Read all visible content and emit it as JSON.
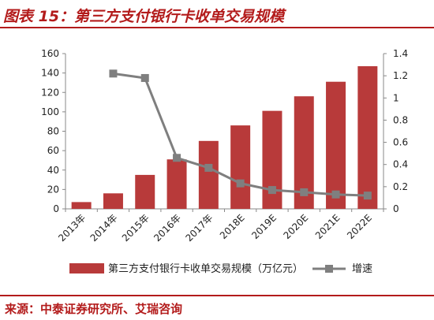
{
  "header": {
    "title": "图表 15：第三方支付银行卡收单交易规模"
  },
  "footer": {
    "source": "来源：中泰证券研究所、艾瑞咨询"
  },
  "colors": {
    "bar": "#b83a3a",
    "line": "#7f7f7f",
    "accent": "#b31b1b"
  },
  "chart_data": {
    "type": "bar",
    "categories": [
      "2013年",
      "2014年",
      "2015年",
      "2016年",
      "2017年",
      "2018E",
      "2019E",
      "2020E",
      "2021E",
      "2022E"
    ],
    "series": [
      {
        "name": "第三方支付银行卡收单交易规模（万亿元）",
        "type": "bar",
        "axis": "left",
        "values": [
          7,
          16,
          35,
          51,
          70,
          86,
          101,
          116,
          131,
          147
        ]
      },
      {
        "name": "增速",
        "type": "line",
        "axis": "right",
        "values": [
          null,
          1.22,
          1.18,
          0.46,
          0.37,
          0.23,
          0.17,
          0.15,
          0.13,
          0.12
        ]
      }
    ],
    "ylim": [
      0,
      160
    ],
    "y_ticks": [
      0,
      20,
      40,
      60,
      80,
      100,
      120,
      140,
      160
    ],
    "y2lim": [
      0,
      1.4
    ],
    "y2_ticks": [
      "0",
      "0.2",
      "0.4",
      "0.6",
      "0.8",
      "1",
      "1.2",
      "1.4"
    ],
    "legend_position": "bottom",
    "grid": false
  }
}
